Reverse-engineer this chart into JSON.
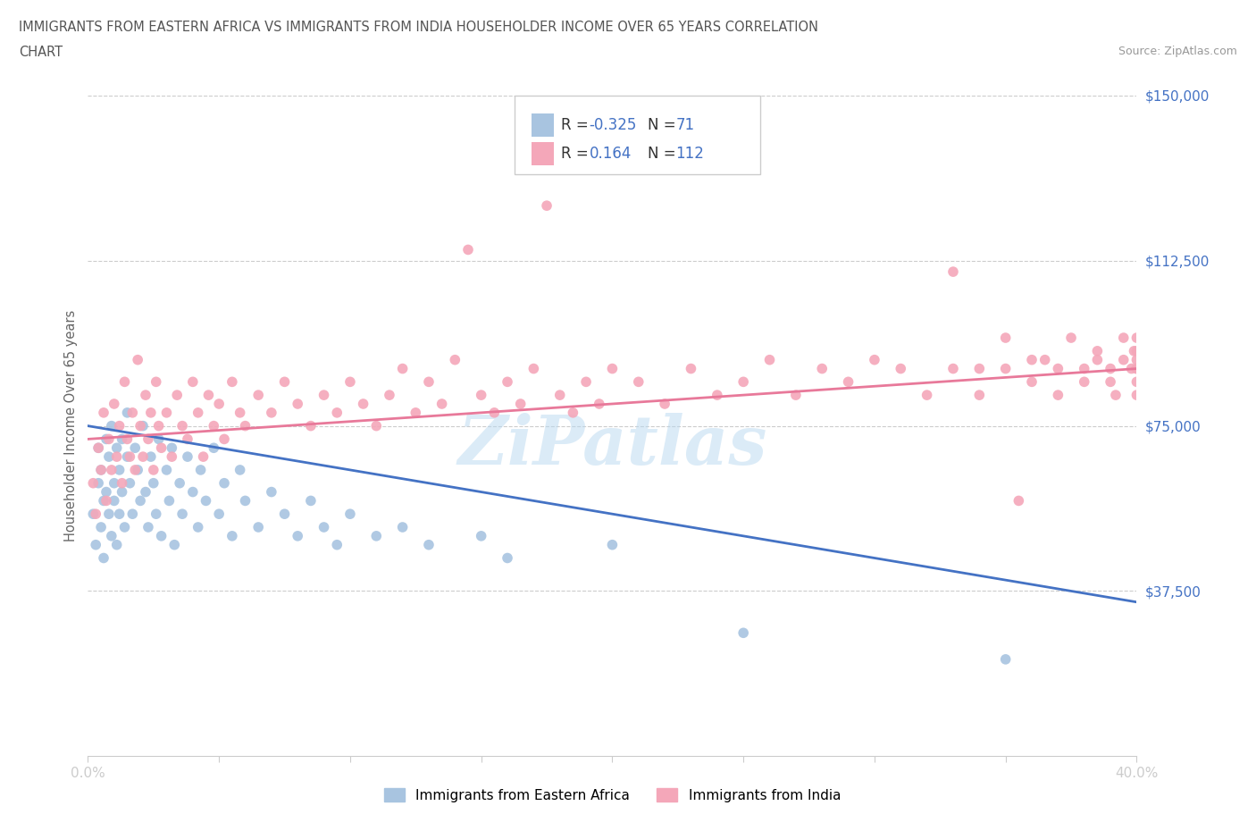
{
  "title_line1": "IMMIGRANTS FROM EASTERN AFRICA VS IMMIGRANTS FROM INDIA HOUSEHOLDER INCOME OVER 65 YEARS CORRELATION",
  "title_line2": "CHART",
  "source": "Source: ZipAtlas.com",
  "ylabel": "Householder Income Over 65 years",
  "xmin": 0.0,
  "xmax": 0.4,
  "ymin": 0,
  "ymax": 150000,
  "yticks": [
    0,
    37500,
    75000,
    112500,
    150000
  ],
  "ytick_labels": [
    "",
    "$37,500",
    "$75,000",
    "$112,500",
    "$150,000"
  ],
  "xticks": [
    0.0,
    0.05,
    0.1,
    0.15,
    0.2,
    0.25,
    0.3,
    0.35,
    0.4
  ],
  "xtick_labels": [
    "0.0%",
    "",
    "",
    "",
    "",
    "",
    "",
    "",
    "40.0%"
  ],
  "blue_color": "#a8c4e0",
  "pink_color": "#f4a7b9",
  "blue_line_color": "#4472c4",
  "pink_line_color": "#e8799a",
  "blue_intercept": 75000,
  "blue_slope": -100000,
  "pink_intercept": 72000,
  "pink_slope": 40000,
  "watermark": "ZiPatlas",
  "legend_label_1": "Immigrants from Eastern Africa",
  "legend_label_2": "Immigrants from India",
  "blue_r_text": "-0.325",
  "blue_n_text": "71",
  "pink_r_text": "0.164",
  "pink_n_text": "112",
  "blue_scatter": [
    [
      0.002,
      55000
    ],
    [
      0.003,
      48000
    ],
    [
      0.004,
      62000
    ],
    [
      0.004,
      70000
    ],
    [
      0.005,
      52000
    ],
    [
      0.005,
      65000
    ],
    [
      0.006,
      58000
    ],
    [
      0.006,
      45000
    ],
    [
      0.007,
      72000
    ],
    [
      0.007,
      60000
    ],
    [
      0.008,
      55000
    ],
    [
      0.008,
      68000
    ],
    [
      0.009,
      50000
    ],
    [
      0.009,
      75000
    ],
    [
      0.01,
      62000
    ],
    [
      0.01,
      58000
    ],
    [
      0.011,
      70000
    ],
    [
      0.011,
      48000
    ],
    [
      0.012,
      65000
    ],
    [
      0.012,
      55000
    ],
    [
      0.013,
      72000
    ],
    [
      0.013,
      60000
    ],
    [
      0.014,
      52000
    ],
    [
      0.015,
      68000
    ],
    [
      0.015,
      78000
    ],
    [
      0.016,
      62000
    ],
    [
      0.017,
      55000
    ],
    [
      0.018,
      70000
    ],
    [
      0.019,
      65000
    ],
    [
      0.02,
      58000
    ],
    [
      0.021,
      75000
    ],
    [
      0.022,
      60000
    ],
    [
      0.023,
      52000
    ],
    [
      0.024,
      68000
    ],
    [
      0.025,
      62000
    ],
    [
      0.026,
      55000
    ],
    [
      0.027,
      72000
    ],
    [
      0.028,
      50000
    ],
    [
      0.03,
      65000
    ],
    [
      0.031,
      58000
    ],
    [
      0.032,
      70000
    ],
    [
      0.033,
      48000
    ],
    [
      0.035,
      62000
    ],
    [
      0.036,
      55000
    ],
    [
      0.038,
      68000
    ],
    [
      0.04,
      60000
    ],
    [
      0.042,
      52000
    ],
    [
      0.043,
      65000
    ],
    [
      0.045,
      58000
    ],
    [
      0.048,
      70000
    ],
    [
      0.05,
      55000
    ],
    [
      0.052,
      62000
    ],
    [
      0.055,
      50000
    ],
    [
      0.058,
      65000
    ],
    [
      0.06,
      58000
    ],
    [
      0.065,
      52000
    ],
    [
      0.07,
      60000
    ],
    [
      0.075,
      55000
    ],
    [
      0.08,
      50000
    ],
    [
      0.085,
      58000
    ],
    [
      0.09,
      52000
    ],
    [
      0.095,
      48000
    ],
    [
      0.1,
      55000
    ],
    [
      0.11,
      50000
    ],
    [
      0.12,
      52000
    ],
    [
      0.13,
      48000
    ],
    [
      0.15,
      50000
    ],
    [
      0.16,
      45000
    ],
    [
      0.2,
      48000
    ],
    [
      0.25,
      28000
    ],
    [
      0.35,
      22000
    ]
  ],
  "pink_scatter": [
    [
      0.002,
      62000
    ],
    [
      0.003,
      55000
    ],
    [
      0.004,
      70000
    ],
    [
      0.005,
      65000
    ],
    [
      0.006,
      78000
    ],
    [
      0.007,
      58000
    ],
    [
      0.008,
      72000
    ],
    [
      0.009,
      65000
    ],
    [
      0.01,
      80000
    ],
    [
      0.011,
      68000
    ],
    [
      0.012,
      75000
    ],
    [
      0.013,
      62000
    ],
    [
      0.014,
      85000
    ],
    [
      0.015,
      72000
    ],
    [
      0.016,
      68000
    ],
    [
      0.017,
      78000
    ],
    [
      0.018,
      65000
    ],
    [
      0.019,
      90000
    ],
    [
      0.02,
      75000
    ],
    [
      0.021,
      68000
    ],
    [
      0.022,
      82000
    ],
    [
      0.023,
      72000
    ],
    [
      0.024,
      78000
    ],
    [
      0.025,
      65000
    ],
    [
      0.026,
      85000
    ],
    [
      0.027,
      75000
    ],
    [
      0.028,
      70000
    ],
    [
      0.03,
      78000
    ],
    [
      0.032,
      68000
    ],
    [
      0.034,
      82000
    ],
    [
      0.036,
      75000
    ],
    [
      0.038,
      72000
    ],
    [
      0.04,
      85000
    ],
    [
      0.042,
      78000
    ],
    [
      0.044,
      68000
    ],
    [
      0.046,
      82000
    ],
    [
      0.048,
      75000
    ],
    [
      0.05,
      80000
    ],
    [
      0.052,
      72000
    ],
    [
      0.055,
      85000
    ],
    [
      0.058,
      78000
    ],
    [
      0.06,
      75000
    ],
    [
      0.065,
      82000
    ],
    [
      0.07,
      78000
    ],
    [
      0.075,
      85000
    ],
    [
      0.08,
      80000
    ],
    [
      0.085,
      75000
    ],
    [
      0.09,
      82000
    ],
    [
      0.095,
      78000
    ],
    [
      0.1,
      85000
    ],
    [
      0.105,
      80000
    ],
    [
      0.11,
      75000
    ],
    [
      0.115,
      82000
    ],
    [
      0.12,
      88000
    ],
    [
      0.125,
      78000
    ],
    [
      0.13,
      85000
    ],
    [
      0.135,
      80000
    ],
    [
      0.14,
      90000
    ],
    [
      0.145,
      115000
    ],
    [
      0.15,
      82000
    ],
    [
      0.155,
      78000
    ],
    [
      0.16,
      85000
    ],
    [
      0.165,
      80000
    ],
    [
      0.17,
      88000
    ],
    [
      0.175,
      125000
    ],
    [
      0.18,
      82000
    ],
    [
      0.185,
      78000
    ],
    [
      0.19,
      85000
    ],
    [
      0.195,
      80000
    ],
    [
      0.2,
      88000
    ],
    [
      0.21,
      85000
    ],
    [
      0.22,
      80000
    ],
    [
      0.23,
      88000
    ],
    [
      0.24,
      82000
    ],
    [
      0.25,
      85000
    ],
    [
      0.26,
      90000
    ],
    [
      0.27,
      82000
    ],
    [
      0.28,
      88000
    ],
    [
      0.29,
      85000
    ],
    [
      0.3,
      90000
    ],
    [
      0.31,
      88000
    ],
    [
      0.32,
      82000
    ],
    [
      0.33,
      110000
    ],
    [
      0.34,
      88000
    ],
    [
      0.35,
      95000
    ],
    [
      0.355,
      58000
    ],
    [
      0.36,
      85000
    ],
    [
      0.365,
      90000
    ],
    [
      0.37,
      88000
    ],
    [
      0.375,
      95000
    ],
    [
      0.38,
      85000
    ],
    [
      0.385,
      92000
    ],
    [
      0.39,
      88000
    ],
    [
      0.392,
      82000
    ],
    [
      0.395,
      90000
    ],
    [
      0.398,
      88000
    ],
    [
      0.399,
      92000
    ],
    [
      0.4,
      85000
    ],
    [
      0.4,
      95000
    ],
    [
      0.4,
      88000
    ],
    [
      0.4,
      90000
    ],
    [
      0.4,
      82000
    ],
    [
      0.4,
      92000
    ],
    [
      0.4,
      88000
    ],
    [
      0.395,
      95000
    ],
    [
      0.39,
      85000
    ],
    [
      0.385,
      90000
    ],
    [
      0.38,
      88000
    ],
    [
      0.37,
      82000
    ],
    [
      0.36,
      90000
    ],
    [
      0.35,
      88000
    ],
    [
      0.34,
      82000
    ],
    [
      0.33,
      88000
    ]
  ]
}
